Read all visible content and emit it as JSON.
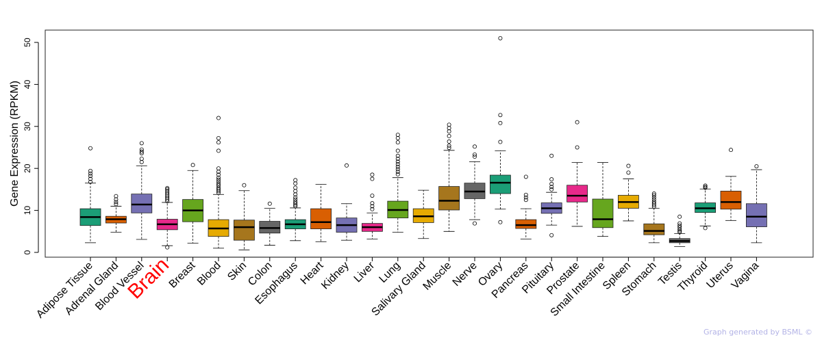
{
  "chart_data": {
    "type": "boxplot",
    "ylabel": "Gene Expression (RPKM)",
    "ylim": [
      0,
      52
    ],
    "yticks": [
      0,
      10,
      20,
      30,
      40,
      50
    ],
    "highlight": "Brain",
    "highlight_color": "#ff0000",
    "categories": [
      "Adipose Tissue",
      "Adrenal Gland",
      "Blood Vessel",
      "Brain",
      "Breast",
      "Blood",
      "Skin",
      "Colon",
      "Esophagus",
      "Heart",
      "Kidney",
      "Liver",
      "Lung",
      "Salivary Gland",
      "Muscle",
      "Nerve",
      "Ovary",
      "Pancreas",
      "Pituitary",
      "Prostate",
      "Small Intestine",
      "Spleen",
      "Stomach",
      "Testis",
      "Thyroid",
      "Uterus",
      "Vagina"
    ],
    "colors": [
      "#1b9e77",
      "#d95f02",
      "#7570b3",
      "#e7298a",
      "#66a61e",
      "#e6ab02",
      "#a6761d",
      "#666666",
      "#1b9e77",
      "#d95f02",
      "#7570b3",
      "#e7298a",
      "#66a61e",
      "#e6ab02",
      "#a6761d",
      "#666666",
      "#1b9e77",
      "#d95f02",
      "#7570b3",
      "#e7298a",
      "#66a61e",
      "#e6ab02",
      "#a6761d",
      "#666666",
      "#1b9e77",
      "#d95f02",
      "#7570b3"
    ],
    "boxes": [
      {
        "min": 2.3,
        "q1": 6.4,
        "median": 8.4,
        "q3": 10.4,
        "max": 16.5,
        "outliers": [
          16.8,
          17.5,
          18.2,
          18.8,
          19.4,
          24.8
        ]
      },
      {
        "min": 4.8,
        "q1": 7.0,
        "median": 7.9,
        "q3": 8.6,
        "max": 11.0,
        "outliers": [
          11.5,
          12.0,
          12.6,
          13.4
        ]
      },
      {
        "min": 3.1,
        "q1": 9.4,
        "median": 11.4,
        "q3": 13.9,
        "max": 20.6,
        "outliers": [
          21.5,
          22.3,
          23.6,
          24.0,
          24.5,
          26.0
        ]
      },
      {
        "min": 1.6,
        "q1": 5.4,
        "median": 6.7,
        "q3": 7.9,
        "max": 11.9,
        "outliers": [
          1.2,
          12.2,
          12.6,
          13.0,
          13.4,
          13.8,
          14.2,
          14.6,
          15.0,
          15.3
        ]
      },
      {
        "min": 2.2,
        "q1": 7.3,
        "median": 10.0,
        "q3": 12.6,
        "max": 19.5,
        "outliers": [
          20.8
        ]
      },
      {
        "min": 1.0,
        "q1": 3.8,
        "median": 5.7,
        "q3": 7.8,
        "max": 13.8,
        "outliers": [
          14.2,
          14.6,
          15.0,
          15.4,
          15.9,
          16.3,
          16.8,
          17.3,
          17.8,
          18.5,
          19.2,
          20.0,
          24.2,
          26.2,
          27.2,
          32.0
        ]
      },
      {
        "min": 0.6,
        "q1": 2.9,
        "median": 6.0,
        "q3": 7.7,
        "max": 14.7,
        "outliers": [
          16.0
        ]
      },
      {
        "min": 1.7,
        "q1": 4.6,
        "median": 5.8,
        "q3": 7.4,
        "max": 10.5,
        "outliers": [
          11.6
        ]
      },
      {
        "min": 2.8,
        "q1": 5.6,
        "median": 6.7,
        "q3": 7.8,
        "max": 10.6,
        "outliers": [
          11.0,
          11.3,
          11.7,
          12.1,
          12.6,
          13.1,
          13.8,
          14.6,
          15.4,
          16.4,
          17.2
        ]
      },
      {
        "min": 2.5,
        "q1": 5.6,
        "median": 7.2,
        "q3": 10.4,
        "max": 16.2,
        "outliers": []
      },
      {
        "min": 2.9,
        "q1": 4.8,
        "median": 6.5,
        "q3": 8.2,
        "max": 11.6,
        "outliers": [
          20.7
        ]
      },
      {
        "min": 3.2,
        "q1": 5.0,
        "median": 6.0,
        "q3": 6.9,
        "max": 9.4,
        "outliers": [
          10.3,
          11.0,
          11.7,
          13.5,
          17.5,
          18.5
        ]
      },
      {
        "min": 4.8,
        "q1": 8.2,
        "median": 10.1,
        "q3": 12.2,
        "max": 17.8,
        "outliers": [
          18.6,
          19.2,
          19.8,
          20.4,
          21.0,
          21.6,
          22.3,
          23.0,
          24.2,
          26.2,
          27.2,
          28.0
        ]
      },
      {
        "min": 3.3,
        "q1": 7.1,
        "median": 8.6,
        "q3": 10.4,
        "max": 14.8,
        "outliers": []
      },
      {
        "min": 5.0,
        "q1": 10.1,
        "median": 12.3,
        "q3": 15.7,
        "max": 24.3,
        "outliers": [
          24.9,
          25.4,
          26.4,
          27.7,
          28.8,
          29.6,
          30.4
        ]
      },
      {
        "min": 7.8,
        "q1": 12.8,
        "median": 14.5,
        "q3": 16.5,
        "max": 21.6,
        "outliers": [
          6.9,
          22.8,
          23.3,
          25.2
        ]
      },
      {
        "min": 10.3,
        "q1": 14.0,
        "median": 16.6,
        "q3": 18.4,
        "max": 24.2,
        "outliers": [
          7.2,
          26.3,
          30.8,
          32.7,
          51.0
        ]
      },
      {
        "min": 3.2,
        "q1": 5.7,
        "median": 6.5,
        "q3": 7.8,
        "max": 10.4,
        "outliers": [
          12.5,
          13.1,
          13.7,
          18.0
        ]
      },
      {
        "min": 6.5,
        "q1": 9.3,
        "median": 10.5,
        "q3": 11.8,
        "max": 14.3,
        "outliers": [
          4.1,
          15.0,
          15.6,
          16.3,
          17.4,
          23.0
        ]
      },
      {
        "min": 6.2,
        "q1": 12.0,
        "median": 13.5,
        "q3": 16.0,
        "max": 21.4,
        "outliers": [
          25.0,
          31.0
        ]
      },
      {
        "min": 3.8,
        "q1": 5.9,
        "median": 7.9,
        "q3": 12.7,
        "max": 21.4,
        "outliers": []
      },
      {
        "min": 7.5,
        "q1": 10.5,
        "median": 12.0,
        "q3": 13.6,
        "max": 17.5,
        "outliers": [
          19.0,
          20.6
        ]
      },
      {
        "min": 2.3,
        "q1": 4.2,
        "median": 5.1,
        "q3": 6.8,
        "max": 10.5,
        "outliers": [
          10.9,
          11.3,
          11.7,
          12.1,
          12.6,
          13.1,
          13.6,
          14.0
        ]
      },
      {
        "min": 1.4,
        "q1": 2.3,
        "median": 2.7,
        "q3": 3.3,
        "max": 4.5,
        "outliers": [
          4.8,
          5.1,
          5.5,
          6.0,
          6.4,
          6.9,
          8.5
        ]
      },
      {
        "min": 6.3,
        "q1": 9.5,
        "median": 10.5,
        "q3": 11.8,
        "max": 15.1,
        "outliers": [
          5.8,
          15.4,
          15.6,
          15.9
        ]
      },
      {
        "min": 7.6,
        "q1": 10.3,
        "median": 12.0,
        "q3": 14.6,
        "max": 18.1,
        "outliers": [
          24.4
        ]
      },
      {
        "min": 2.3,
        "q1": 6.1,
        "median": 8.5,
        "q3": 11.6,
        "max": 19.7,
        "outliers": [
          20.5
        ]
      }
    ]
  },
  "credit": "Graph generated by BSML ©"
}
